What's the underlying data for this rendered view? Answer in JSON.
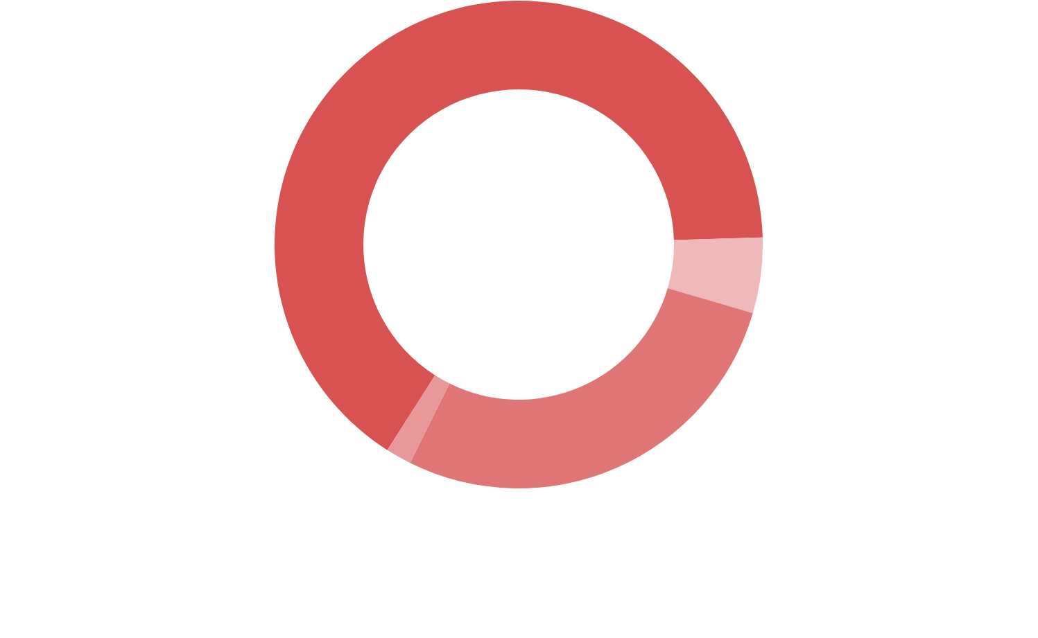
{
  "chart_data": {
    "type": "donut",
    "categories": [
      null,
      null,
      null,
      null
    ],
    "values": [
      65.5,
      5.0,
      27.8,
      1.7
    ],
    "colors": [
      "#d95252",
      "#efb9b9",
      "#e07575",
      "#e89898"
    ]
  }
}
